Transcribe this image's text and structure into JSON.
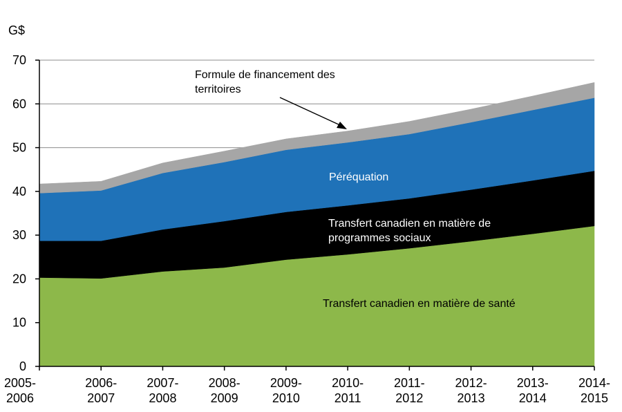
{
  "chart_data": {
    "type": "area",
    "stacked": true,
    "unit_label": "G$",
    "ylim": [
      0,
      70
    ],
    "yticks": [
      0,
      10,
      20,
      30,
      40,
      50,
      60,
      70
    ],
    "grid": true,
    "categories": [
      [
        "2005-",
        "2006"
      ],
      [
        "2006-",
        "2007"
      ],
      [
        "2007-",
        "2008"
      ],
      [
        "2008-",
        "2009"
      ],
      [
        "2009-",
        "2010"
      ],
      [
        "2010-",
        "2011"
      ],
      [
        "2011-",
        "2012"
      ],
      [
        "2012-",
        "2013"
      ],
      [
        "2013-",
        "2014"
      ],
      [
        "2014-",
        "2015"
      ]
    ],
    "series": [
      {
        "name": "Transfert canadien en matière de santé",
        "color": "#8DB84A",
        "values": [
          20.3,
          20.1,
          21.7,
          22.6,
          24.4,
          25.6,
          27.0,
          28.6,
          30.3,
          32.1
        ]
      },
      {
        "name": "Transfert canadien en matière de programmes sociaux",
        "color": "#000000",
        "values": [
          8.4,
          8.6,
          9.6,
          10.6,
          10.9,
          11.2,
          11.4,
          11.8,
          12.2,
          12.6
        ]
      },
      {
        "name": "Péréquation",
        "color": "#1F72B8",
        "values": [
          10.9,
          11.5,
          12.9,
          13.5,
          14.2,
          14.4,
          14.7,
          15.4,
          16.1,
          16.7
        ]
      },
      {
        "name": "Formule de financement des territoires",
        "color": "#A6A6A6",
        "values": [
          2.1,
          2.1,
          2.3,
          2.5,
          2.5,
          2.6,
          2.9,
          3.0,
          3.2,
          3.5
        ]
      }
    ],
    "labels": {
      "territoires": [
        "Formule de financement des",
        "territoires"
      ],
      "perequation": [
        "Péréquation"
      ],
      "tcps": [
        "Transfert canadien en matière de",
        "programmes sociaux"
      ],
      "tcs": [
        "Transfert canadien en matière de santé"
      ]
    }
  }
}
